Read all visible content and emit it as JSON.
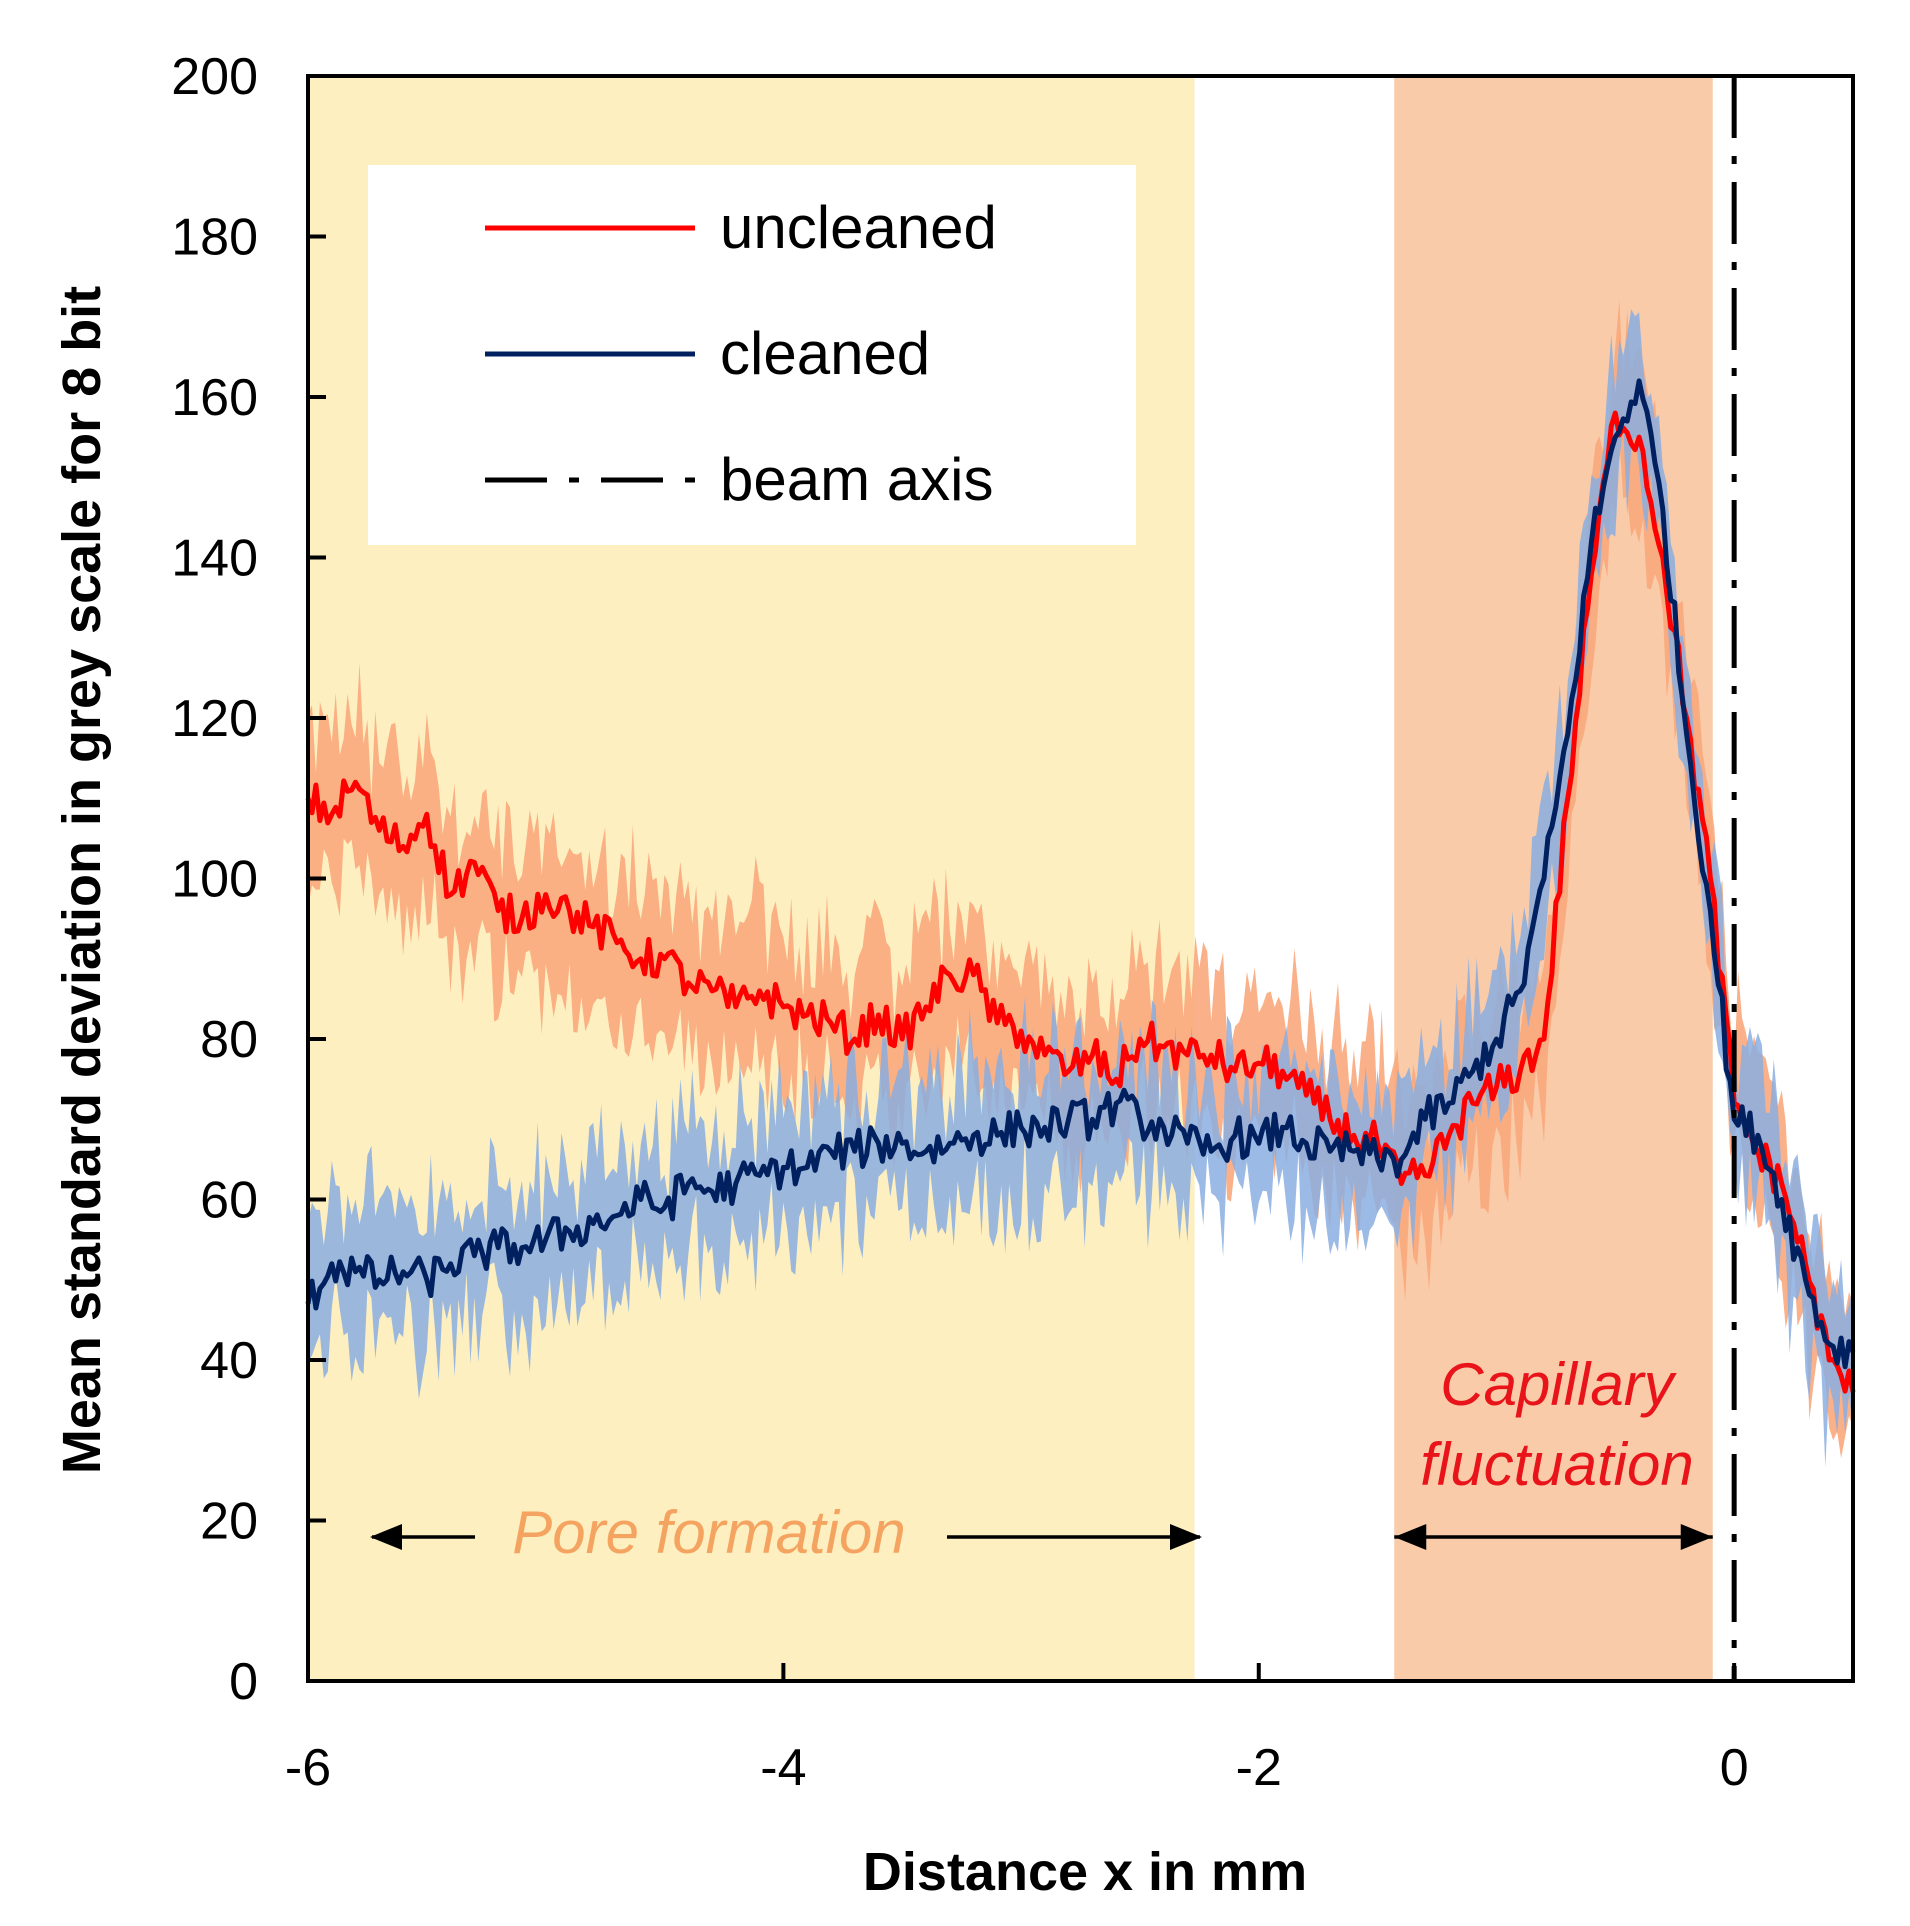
{
  "chart_data": {
    "type": "line",
    "xlabel": "Distance x in mm",
    "ylabel": "Mean standard deviation in grey scale for 8 bit",
    "xlim": [
      -6,
      0.5
    ],
    "ylim": [
      0,
      200
    ],
    "xticks": [
      -6,
      -4,
      -2,
      0
    ],
    "yticks": [
      0,
      20,
      40,
      60,
      80,
      100,
      120,
      140,
      160,
      180,
      200
    ],
    "grid": false,
    "legend_position": "top-left",
    "legend": [
      {
        "label": "uncleaned",
        "color": "#ff0000",
        "style": "solid"
      },
      {
        "label": "cleaned",
        "color": "#002060",
        "style": "solid"
      },
      {
        "label": "beam axis",
        "color": "#000000",
        "style": "dash-dot"
      }
    ],
    "regions": [
      {
        "label": "Pore formation",
        "x_start": -6,
        "x_end": -2.27,
        "color": "#fdefc0",
        "label_color": "#f4a460"
      },
      {
        "label_lines": [
          "Capillary",
          "fluctuation"
        ],
        "x_start": -1.43,
        "x_end": -0.09,
        "color": "#f9cba9",
        "label_color": "#e8141a"
      }
    ],
    "beam_axis_x": 0,
    "series": [
      {
        "name": "uncleaned",
        "color": "#ff0000",
        "band_color": "#f9a97c",
        "points": [
          [
            -6.0,
            110
          ],
          [
            -5.9,
            108
          ],
          [
            -5.8,
            112
          ],
          [
            -5.7,
            106
          ],
          [
            -5.6,
            104
          ],
          [
            -5.5,
            108
          ],
          [
            -5.4,
            98
          ],
          [
            -5.3,
            102
          ],
          [
            -5.2,
            96
          ],
          [
            -5.1,
            95
          ],
          [
            -5.0,
            98
          ],
          [
            -4.9,
            96
          ],
          [
            -4.8,
            94
          ],
          [
            -4.7,
            92
          ],
          [
            -4.6,
            90
          ],
          [
            -4.5,
            90
          ],
          [
            -4.4,
            87
          ],
          [
            -4.3,
            86
          ],
          [
            -4.2,
            84
          ],
          [
            -4.1,
            86
          ],
          [
            -4.0,
            84
          ],
          [
            -3.9,
            83
          ],
          [
            -3.8,
            82
          ],
          [
            -3.7,
            80
          ],
          [
            -3.6,
            83
          ],
          [
            -3.5,
            80
          ],
          [
            -3.4,
            84
          ],
          [
            -3.3,
            88
          ],
          [
            -3.2,
            88
          ],
          [
            -3.1,
            82
          ],
          [
            -3.0,
            81
          ],
          [
            -2.9,
            78
          ],
          [
            -2.8,
            76
          ],
          [
            -2.7,
            78
          ],
          [
            -2.6,
            75
          ],
          [
            -2.5,
            80
          ],
          [
            -2.4,
            79
          ],
          [
            -2.3,
            78
          ],
          [
            -2.2,
            78
          ],
          [
            -2.1,
            76
          ],
          [
            -2.0,
            77
          ],
          [
            -1.9,
            76
          ],
          [
            -1.8,
            73
          ],
          [
            -1.7,
            70
          ],
          [
            -1.6,
            68
          ],
          [
            -1.5,
            67
          ],
          [
            -1.4,
            62
          ],
          [
            -1.3,
            63
          ],
          [
            -1.2,
            68
          ],
          [
            -1.1,
            72
          ],
          [
            -1.0,
            74
          ],
          [
            -0.9,
            76
          ],
          [
            -0.8,
            80
          ],
          [
            -0.7,
            110
          ],
          [
            -0.6,
            138
          ],
          [
            -0.5,
            158
          ],
          [
            -0.4,
            155
          ],
          [
            -0.3,
            140
          ],
          [
            -0.2,
            120
          ],
          [
            -0.1,
            100
          ],
          [
            0.0,
            72
          ],
          [
            0.1,
            66
          ],
          [
            0.2,
            62
          ],
          [
            0.3,
            52
          ],
          [
            0.4,
            40
          ],
          [
            0.5,
            36
          ]
        ]
      },
      {
        "name": "cleaned",
        "color": "#002060",
        "band_color": "#8aaee0",
        "points": [
          [
            -6.0,
            47
          ],
          [
            -5.9,
            52
          ],
          [
            -5.8,
            51
          ],
          [
            -5.7,
            50
          ],
          [
            -5.6,
            51
          ],
          [
            -5.5,
            50
          ],
          [
            -5.4,
            52
          ],
          [
            -5.3,
            53
          ],
          [
            -5.2,
            54
          ],
          [
            -5.1,
            54
          ],
          [
            -5.0,
            55
          ],
          [
            -4.9,
            56
          ],
          [
            -4.8,
            57
          ],
          [
            -4.7,
            58
          ],
          [
            -4.6,
            60
          ],
          [
            -4.5,
            59
          ],
          [
            -4.4,
            62
          ],
          [
            -4.3,
            61
          ],
          [
            -4.2,
            62
          ],
          [
            -4.1,
            63
          ],
          [
            -4.0,
            64
          ],
          [
            -3.9,
            64
          ],
          [
            -3.8,
            66
          ],
          [
            -3.7,
            66
          ],
          [
            -3.6,
            67
          ],
          [
            -3.5,
            67
          ],
          [
            -3.4,
            66
          ],
          [
            -3.3,
            67
          ],
          [
            -3.2,
            68
          ],
          [
            -3.1,
            68
          ],
          [
            -3.0,
            69
          ],
          [
            -2.9,
            69
          ],
          [
            -2.8,
            70
          ],
          [
            -2.7,
            70
          ],
          [
            -2.6,
            72
          ],
          [
            -2.5,
            70
          ],
          [
            -2.4,
            69
          ],
          [
            -2.3,
            67
          ],
          [
            -2.2,
            66
          ],
          [
            -2.1,
            68
          ],
          [
            -2.0,
            67
          ],
          [
            -1.9,
            69
          ],
          [
            -1.8,
            67
          ],
          [
            -1.7,
            66
          ],
          [
            -1.6,
            66
          ],
          [
            -1.5,
            65
          ],
          [
            -1.4,
            65
          ],
          [
            -1.3,
            70
          ],
          [
            -1.2,
            72
          ],
          [
            -1.1,
            76
          ],
          [
            -1.0,
            80
          ],
          [
            -0.9,
            86
          ],
          [
            -0.8,
            100
          ],
          [
            -0.7,
            118
          ],
          [
            -0.6,
            142
          ],
          [
            -0.5,
            155
          ],
          [
            -0.4,
            162
          ],
          [
            -0.3,
            146
          ],
          [
            -0.2,
            118
          ],
          [
            -0.1,
            96
          ],
          [
            0.0,
            70
          ],
          [
            0.1,
            68
          ],
          [
            0.2,
            60
          ],
          [
            0.3,
            50
          ],
          [
            0.4,
            42
          ],
          [
            0.5,
            41
          ]
        ]
      }
    ]
  }
}
